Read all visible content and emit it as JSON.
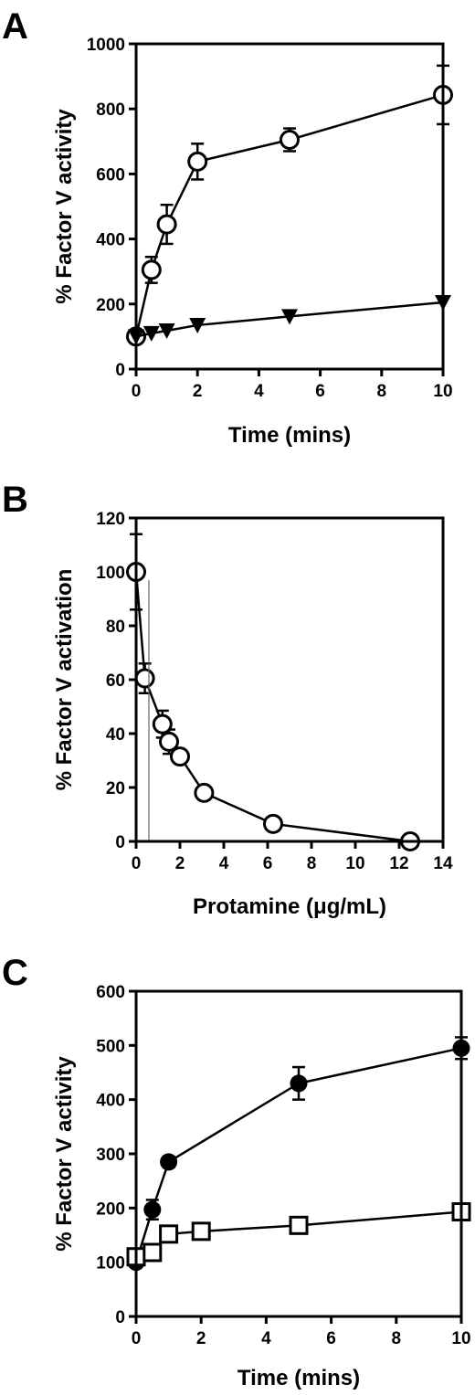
{
  "chart_data": [
    {
      "panel": "A",
      "type": "line",
      "xlabel": "Time (mins)",
      "ylabel": "%  Factor V activity",
      "xlim": [
        0,
        10
      ],
      "ylim": [
        0,
        1000
      ],
      "xticks": [
        0,
        2,
        4,
        6,
        8,
        10
      ],
      "yticks": [
        0,
        200,
        400,
        600,
        800,
        1000
      ],
      "series": [
        {
          "marker": "open-circle",
          "x": [
            0,
            0.5,
            1,
            2,
            5,
            10
          ],
          "y": [
            100,
            305,
            445,
            638,
            705,
            843
          ],
          "err": [
            0,
            40,
            60,
            55,
            35,
            90
          ]
        },
        {
          "marker": "filled-triangle-down",
          "x": [
            0,
            0.5,
            1,
            2,
            5,
            10
          ],
          "y": [
            100,
            110,
            118,
            135,
            162,
            205
          ],
          "err": [
            0,
            0,
            0,
            0,
            0,
            0
          ]
        }
      ]
    },
    {
      "panel": "B",
      "type": "line",
      "xlabel": "Protamine (μg/mL)",
      "ylabel": "%  Factor V activation",
      "xlim": [
        0,
        14
      ],
      "ylim": [
        0,
        120
      ],
      "xticks": [
        0,
        2,
        4,
        6,
        8,
        10,
        12,
        14
      ],
      "yticks": [
        0,
        20,
        40,
        60,
        80,
        100,
        120
      ],
      "series": [
        {
          "marker": "open-circle",
          "x": [
            0,
            0.4,
            1.2,
            1.5,
            2,
            3.1,
            6.25,
            12.5
          ],
          "y": [
            100,
            60.5,
            43.5,
            37,
            31.5,
            18,
            6.5,
            0
          ],
          "err": [
            14,
            5.5,
            5,
            4.5,
            2,
            1.5,
            1,
            0
          ]
        }
      ]
    },
    {
      "panel": "C",
      "type": "line",
      "xlabel": "Time (mins)",
      "ylabel": "%  Factor V activity",
      "xlim": [
        0,
        10
      ],
      "ylim": [
        0,
        600
      ],
      "xticks": [
        0,
        2,
        4,
        6,
        8,
        10
      ],
      "yticks": [
        0,
        100,
        200,
        300,
        400,
        500,
        600
      ],
      "series": [
        {
          "marker": "filled-circle",
          "x": [
            0,
            0.5,
            1,
            5,
            10
          ],
          "y": [
            100,
            197,
            285,
            430,
            495
          ],
          "err": [
            0,
            18,
            10,
            30,
            20
          ]
        },
        {
          "marker": "open-square",
          "x": [
            0,
            0.5,
            1,
            2,
            5,
            10
          ],
          "y": [
            110,
            118,
            152,
            157,
            168,
            193
          ],
          "err": [
            0,
            0,
            0,
            0,
            0,
            0
          ]
        }
      ]
    }
  ]
}
